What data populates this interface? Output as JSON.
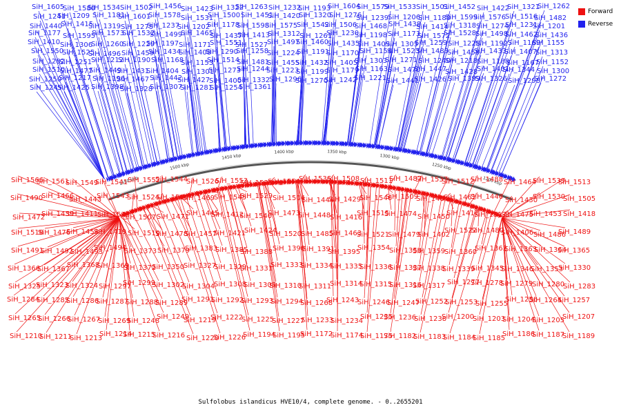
{
  "caption": "Sulfolobus islandicus HVE10/4, complete genome. - 0..2655201",
  "legend": [
    {
      "label": "Forward",
      "color": "#ee1111"
    },
    {
      "label": "Reverse",
      "color": "#2222ee"
    }
  ],
  "colors": {
    "forward": "#ee1111",
    "reverse": "#2222ee",
    "backbone": "#555555"
  },
  "scale_labels": [
    "1550 kbp",
    "1500 kbp",
    "1450 kbp",
    "1400 kbp",
    "1350 kbp",
    "1300 kbp",
    "1250 kbp",
    "1200 kbp"
  ],
  "reverse_genes": [
    "SiH_1605",
    "SiH_1580",
    "SiH_1534",
    "SiH_1502",
    "SiH_1456",
    "SiH_1423",
    "SiH_1322",
    "SiH_1263",
    "SiH_1232",
    "SiH_1193",
    "SiH_1604",
    "SiH_1579",
    "SiH_1533",
    "SiH_1501",
    "SiH_1452",
    "SiH_1422",
    "SiH_1321",
    "SiH_1262",
    "SiH_1241",
    "SiH_1209",
    "SiH_1181",
    "SiH_1601",
    "SiH_1578",
    "SiH_1531",
    "SiH_1500",
    "SiH_1451",
    "SiH_1420",
    "SiH_1320",
    "SiH_1276",
    "SiH_1239",
    "SiH_1206",
    "SiH_1180",
    "SiH_1599",
    "SiH_1576",
    "SiH_1516",
    "SiH_1482",
    "SiH_1440",
    "SiH_1415",
    "SiH_1319",
    "SiH_1275",
    "SiH_1237",
    "SiH_1202",
    "SiH_1178",
    "SiH_1598",
    "SiH_1575",
    "SiH_1542",
    "SiH_1506",
    "SiH_1468",
    "SiH_1438",
    "SiH_1414",
    "SiH_1318",
    "SiH_1274",
    "SiH_1231",
    "SiH_1201",
    "SiH_1177",
    "SiH_1595",
    "SiH_1573",
    "SiH_1532",
    "SiH_1499",
    "SiH_1465",
    "SiH_1437",
    "SiH_1413",
    "SiH_1312",
    "SiH_1261",
    "SiH_1230",
    "SiH_1198",
    "SiH_1173",
    "SiH_1572",
    "SiH_1528",
    "SiH_1498",
    "SiH_1462",
    "SiH_1436",
    "SiH_1410",
    "SiH_1306",
    "SiH_1260",
    "SiH_1229",
    "SiH_1197",
    "SiH_1171",
    "SiH_1551",
    "SiH_1527",
    "SiH_1497",
    "SiH_1460",
    "SiH_1435",
    "SiH_1409",
    "SiH_1305",
    "SiH_1259",
    "SiH_1228",
    "SiH_1192",
    "SiH_1169",
    "SiH_1155",
    "SiH_1550",
    "SiH_1525",
    "SiH_1496",
    "SiH_1459",
    "SiH_1434",
    "SiH_1408",
    "SiH_1290",
    "SiH_1258",
    "SiH_1224",
    "SiH_1191",
    "SiH_1170",
    "SiH_1154",
    "SiH_1523",
    "SiH_1483",
    "SiH_1458",
    "SiH_1433",
    "SiH_1407",
    "SiH_1313",
    "SiH_1282",
    "SiH_1251",
    "SiH_1212",
    "SiH_1190",
    "SiH_1168",
    "SiH_1153",
    "SiH_1514",
    "SiH_1481",
    "SiH_1455",
    "SiH_1432",
    "SiH_1405",
    "SiH_1303",
    "SiH_1271",
    "SiH_1240",
    "SiH_1218",
    "SiH_1188",
    "SiH_1167",
    "SiH_1152",
    "SiH_1510",
    "SiH_1477",
    "SiH_1449",
    "SiH_1431",
    "SiH_1404",
    "SiH_1301",
    "SiH_1273",
    "SiH_1244",
    "SiH_1223",
    "SiH_1199",
    "SiH_1179",
    "SiH_1163",
    "SiH_1470",
    "SiH_1447",
    "SiH_1428",
    "SiH_1401",
    "SiH_1344",
    "SiH_1300",
    "SiH_1250",
    "SiH_1217",
    "SiH_1196",
    "SiH_1467",
    "SiH_1442",
    "SiH_1427",
    "SiH_1400",
    "SiH_1332",
    "SiH_1296",
    "SiH_1270",
    "SiH_1242",
    "SiH_1221",
    "SiH_1441",
    "SiH_1426",
    "SiH_1399",
    "SiH_1326",
    "SiH_1298",
    "SiH_1272",
    "SiH_1245",
    "SiH_1425",
    "SiH_1398",
    "SiH_1328",
    "SiH_1307",
    "SiH_1281",
    "SiH_1254",
    "SiH_1361"
  ],
  "forward_genes": [
    "SiH_1566",
    "SiH_1561",
    "SiH_1549",
    "SiH_1541",
    "SiH_1552",
    "SiH_1544",
    "SiH_1526",
    "SiH_1553",
    "SiH_1535",
    "SiH_1554",
    "SiH_1536",
    "SiH_1508",
    "SiH_1511",
    "SiH_1487",
    "SiH_1537",
    "SiH_1512",
    "SiH_1488",
    "SiH_1464",
    "SiH_1539",
    "SiH_1513",
    "SiH_1490",
    "SiH_1466",
    "SiH_1443",
    "SiH_1543",
    "SiH_1524",
    "SiH_1503",
    "SiH_1469",
    "SiH_1545",
    "SiH_1529",
    "SiH_1504",
    "SiH_1444",
    "SiH_1429",
    "SiH_1546",
    "SiH_1509",
    "SiH_1484",
    "SiH_1461",
    "SiH_1446",
    "SiH_1430",
    "SiH_1530",
    "SiH_1505",
    "SiH_1472",
    "SiH_1439",
    "SiH_1411",
    "SiH_1538",
    "SiH_1507",
    "SiH_1471",
    "SiH_1445",
    "SiH_1412",
    "SiH_1540",
    "SiH_1473",
    "SiH_1448",
    "SiH_1416",
    "SiH_1515",
    "SiH_1474",
    "SiH_1450",
    "SiH_1417",
    "SiH_1517",
    "SiH_1475",
    "SiH_1453",
    "SiH_1418",
    "SiH_1518",
    "SiH_1476",
    "SiH_1454",
    "SiH_1419",
    "SiH_1519",
    "SiH_1478",
    "SiH_1457",
    "SiH_1421",
    "SiH_1424",
    "SiH_1520",
    "SiH_1485",
    "SiH_1463",
    "SiH_1521",
    "SiH_1479",
    "SiH_1402",
    "SiH_1522",
    "SiH_1480",
    "SiH_1406",
    "SiH_1486",
    "SiH_1489",
    "SiH_1491",
    "SiH_1492",
    "SiH_1493",
    "SiH_1494",
    "SiH_1373",
    "SiH_1379",
    "SiH_1383",
    "SiH_1385",
    "SiH_1388",
    "SiH_1390",
    "SiH_1391",
    "SiH_1395",
    "SiH_1354",
    "SiH_1358",
    "SiH_1359",
    "SiH_1360",
    "SiH_1362",
    "SiH_1363",
    "SiH_1364",
    "SiH_1365",
    "SiH_1366",
    "SiH_1367",
    "SiH_1368",
    "SiH_1369",
    "SiH_1372",
    "SiH_1350",
    "SiH_1327",
    "SiH_1329",
    "SiH_1331",
    "SiH_1333",
    "SiH_1334",
    "SiH_1335",
    "SiH_1336",
    "SiH_1337",
    "SiH_1338",
    "SiH_1339",
    "SiH_1345",
    "SiH_1346",
    "SiH_1353",
    "SiH_1330",
    "SiH_1325",
    "SiH_1323",
    "SiH_1324",
    "SiH_1297",
    "SiH_1299",
    "SiH_1302",
    "SiH_1304",
    "SiH_1308",
    "SiH_1309",
    "SiH_1310",
    "SiH_1311",
    "SiH_1314",
    "SiH_1315",
    "SiH_1316",
    "SiH_1317",
    "SiH_1277",
    "SiH_1278",
    "SiH_1279",
    "SiH_1280",
    "SiH_1283",
    "SiH_1284",
    "SiH_1285",
    "SiH_1286",
    "SiH_1287",
    "SiH_1288",
    "SiH_1289",
    "SiH_1291",
    "SiH_1292",
    "SiH_1293",
    "SiH_1294",
    "SiH_1268",
    "SiH_1243",
    "SiH_1246",
    "SiH_1247",
    "SiH_1252",
    "SiH_1253",
    "SiH_1255",
    "SiH_1256",
    "SiH_1264",
    "SiH_1257",
    "SiH_1265",
    "SiH_1266",
    "SiH_1267",
    "SiH_1269",
    "SiH_1248",
    "SiH_1249",
    "SiH_1219",
    "SiH_1222",
    "SiH_1225",
    "SiH_1227",
    "SiH_1233",
    "SiH_1234",
    "SiH_1235",
    "SiH_1236",
    "SiH_1238",
    "SiH_1200",
    "SiH_1203",
    "SiH_1204",
    "SiH_1205",
    "SiH_1207",
    "SiH_1210",
    "SiH_1211",
    "SiH_1213",
    "SiH_1214",
    "SiH_1215",
    "SiH_1216",
    "SiH_1220",
    "SiH_1226",
    "SiH_1194",
    "SiH_1195",
    "SiH_1172",
    "SiH_1174",
    "SiH_1175",
    "SiH_1182",
    "SiH_1183",
    "SiH_1184",
    "SiH_1185",
    "SiH_1186",
    "SiH_1187",
    "SiH_1189"
  ]
}
